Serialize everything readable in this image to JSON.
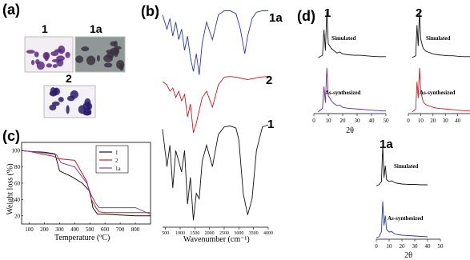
{
  "panels": {
    "a": {
      "label": "(a)",
      "photos": [
        {
          "label": "1",
          "bg": "#f2eef3",
          "blob": "#5c2c7c"
        },
        {
          "label": "1a",
          "bg": "#8f9897",
          "blob": "#3b3140"
        },
        {
          "label": "2",
          "bg": "#f3f1f6",
          "blob": "#2c1b6a"
        }
      ]
    },
    "b": {
      "label": "(b)",
      "xlabel": "Wavenumber (cm⁻¹)",
      "xticks": [
        "500",
        "1000",
        "1500",
        "2000",
        "2500",
        "3000",
        "3500",
        "4000"
      ],
      "curve_labels": [
        "1a",
        "2",
        "1"
      ]
    },
    "c": {
      "label": "(c)",
      "ylabel": "Weight loss (%)",
      "xlabel": "Temperature (ºC)",
      "xticks": [
        "100",
        "200",
        "300",
        "400",
        "500",
        "600",
        "700",
        "800"
      ],
      "yticks": [
        "20",
        "40",
        "60",
        "80",
        "100"
      ],
      "legend": [
        "1",
        "2",
        "1a"
      ]
    },
    "d": {
      "label": "(d)",
      "xlabel": "2θ",
      "xlabel_1a": "2θ",
      "plots": [
        {
          "title": "1",
          "simulated": "Simulated",
          "synth": "As-synthesized",
          "xticks": [
            "0",
            "10",
            "20",
            "30",
            "40",
            "50"
          ]
        },
        {
          "title": "2",
          "simulated": "Simulated",
          "synth": "As-synthesized",
          "xticks": [
            "0",
            "10",
            "20",
            "30",
            "40",
            "50"
          ]
        },
        {
          "title": "1a",
          "simulated": "Simulated",
          "synth": "As-synthesized",
          "xticks": [
            "0",
            "10",
            "20",
            "30",
            "40",
            "50"
          ]
        }
      ]
    }
  },
  "chart_data": [
    {
      "type": "line",
      "panel": "c",
      "ylabel": "Weight loss (%)",
      "xlabel": "Temperature (ºC)",
      "xlim": [
        50,
        900
      ],
      "ylim": [
        10,
        110
      ],
      "series": [
        {
          "name": "1",
          "color": "#111111",
          "x": [
            50,
            100,
            200,
            270,
            300,
            380,
            450,
            500,
            520,
            550,
            600,
            700,
            800,
            900
          ],
          "y": [
            100,
            99,
            98,
            96,
            75,
            68,
            60,
            50,
            30,
            22,
            22,
            21,
            20,
            20
          ]
        },
        {
          "name": "2",
          "color": "#c0202a",
          "x": [
            50,
            100,
            200,
            260,
            290,
            400,
            480,
            510,
            540,
            560,
            600,
            700,
            800,
            900
          ],
          "y": [
            100,
            99,
            95,
            93,
            90,
            88,
            62,
            40,
            30,
            25,
            24,
            24,
            24,
            24
          ]
        },
        {
          "name": "1a",
          "color": "#7a4a9a",
          "x": [
            50,
            100,
            200,
            280,
            310,
            400,
            480,
            510,
            540,
            560,
            600,
            700,
            800,
            900
          ],
          "y": [
            100,
            99,
            97,
            95,
            85,
            80,
            60,
            45,
            35,
            30,
            30,
            30,
            30,
            22
          ]
        }
      ]
    },
    {
      "type": "line",
      "panel": "b",
      "xlabel": "Wavenumber (cm⁻¹)",
      "xlim": [
        400,
        4000
      ],
      "series": [
        {
          "name": "1a",
          "color": "#2c36a8",
          "x": [
            400,
            550,
            650,
            750,
            850,
            950,
            1050,
            1150,
            1250,
            1350,
            1450,
            1550,
            1650,
            1750,
            1900,
            2100,
            2300,
            2500,
            2700,
            2900,
            3050,
            3200,
            3300,
            3450,
            3600,
            3800,
            4000
          ],
          "y": [
            90,
            70,
            85,
            60,
            80,
            55,
            70,
            40,
            60,
            30,
            10,
            35,
            5,
            50,
            80,
            55,
            90,
            96,
            96,
            92,
            70,
            35,
            60,
            85,
            94,
            96,
            96
          ]
        },
        {
          "name": "2",
          "color": "#c0202a",
          "x": [
            400,
            550,
            650,
            750,
            850,
            950,
            1050,
            1150,
            1250,
            1350,
            1450,
            1550,
            1650,
            1750,
            1900,
            2100,
            2300,
            2500,
            2700,
            2900,
            3100,
            3300,
            3500,
            3700,
            4000
          ],
          "y": [
            85,
            80,
            70,
            75,
            60,
            70,
            55,
            65,
            30,
            50,
            5,
            20,
            40,
            60,
            70,
            45,
            80,
            92,
            93,
            92,
            90,
            88,
            90,
            92,
            93
          ]
        },
        {
          "name": "1",
          "color": "#111111",
          "x": [
            400,
            550,
            650,
            750,
            850,
            950,
            1050,
            1150,
            1250,
            1350,
            1450,
            1550,
            1650,
            1750,
            1900,
            2100,
            2300,
            2500,
            2700,
            2900,
            3000,
            3150,
            3300,
            3450,
            3600,
            3800,
            4000
          ],
          "y": [
            90,
            55,
            75,
            35,
            70,
            60,
            50,
            70,
            20,
            45,
            5,
            30,
            25,
            60,
            75,
            55,
            85,
            92,
            93,
            91,
            80,
            30,
            10,
            25,
            70,
            92,
            94
          ]
        }
      ]
    },
    {
      "type": "line",
      "panel": "d",
      "xlabel": "2θ",
      "xlim": [
        0,
        50
      ],
      "series": [
        {
          "name": "1 Simulated",
          "color": "#111111",
          "x": [
            3,
            6,
            7,
            8,
            9,
            10,
            12,
            14,
            16,
            18,
            20,
            24,
            28,
            32,
            36,
            40,
            45,
            50
          ],
          "y": [
            0,
            5,
            60,
            15,
            100,
            30,
            20,
            15,
            10,
            12,
            8,
            6,
            5,
            5,
            4,
            3,
            2,
            2
          ]
        },
        {
          "name": "1 As-synthesized",
          "color": "#6a2a8a",
          "x": [
            3,
            6,
            7,
            8,
            9,
            10,
            12,
            14,
            16,
            18,
            20,
            24,
            28,
            32,
            36,
            40,
            45,
            50
          ],
          "y": [
            0,
            8,
            55,
            20,
            95,
            35,
            25,
            18,
            14,
            15,
            10,
            8,
            7,
            6,
            5,
            4,
            3,
            2
          ]
        },
        {
          "name": "2 Simulated",
          "color": "#111111",
          "x": [
            3,
            6,
            7,
            8,
            9,
            10,
            12,
            14,
            16,
            18,
            20,
            24,
            28,
            32,
            36,
            40,
            45,
            50
          ],
          "y": [
            0,
            4,
            70,
            25,
            100,
            40,
            20,
            14,
            12,
            10,
            8,
            6,
            5,
            4,
            4,
            3,
            2,
            2
          ]
        },
        {
          "name": "2 As-synthesized",
          "color": "#c0202a",
          "x": [
            3,
            6,
            7,
            8,
            9,
            10,
            12,
            14,
            16,
            18,
            20,
            24,
            28,
            32,
            36,
            40,
            45,
            50
          ],
          "y": [
            0,
            6,
            65,
            30,
            95,
            45,
            22,
            16,
            14,
            12,
            10,
            8,
            7,
            6,
            5,
            4,
            3,
            2
          ]
        },
        {
          "name": "1a Simulated",
          "color": "#111111",
          "x": [
            0,
            2,
            4,
            5,
            6,
            7,
            8,
            10,
            12,
            14,
            16,
            18,
            20,
            25,
            30,
            35,
            40
          ],
          "y": [
            0,
            2,
            10,
            100,
            20,
            50,
            15,
            10,
            12,
            8,
            6,
            5,
            4,
            3,
            3,
            2,
            2
          ]
        },
        {
          "name": "1a As-synthesized",
          "color": "#2c36a8",
          "x": [
            0,
            2,
            4,
            5,
            6,
            7,
            8,
            10,
            12,
            14,
            16,
            18,
            20,
            25,
            30,
            35,
            40
          ],
          "y": [
            0,
            2,
            15,
            90,
            30,
            55,
            20,
            14,
            15,
            10,
            8,
            7,
            6,
            5,
            4,
            3,
            2
          ]
        }
      ]
    }
  ]
}
